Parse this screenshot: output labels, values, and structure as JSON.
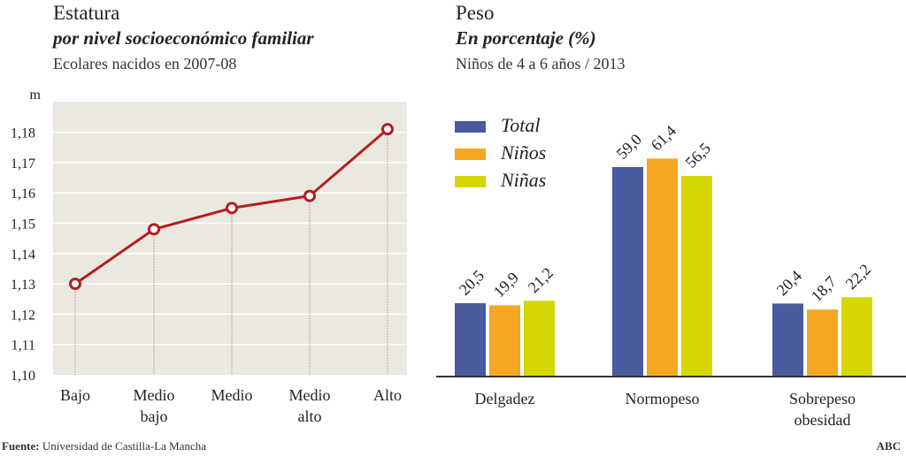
{
  "chart_data": [
    {
      "type": "line",
      "title": "Estatura",
      "subtitle": "por nivel socioeconómico familiar",
      "note": "Ecolares nacidos en 2007-08",
      "ylabel": "m",
      "categories": [
        [
          "Bajo"
        ],
        [
          "Medio",
          "bajo"
        ],
        [
          "Medio"
        ],
        [
          "Medio",
          "alto"
        ],
        [
          "Alto"
        ]
      ],
      "values": [
        1.13,
        1.148,
        1.155,
        1.159,
        1.181
      ],
      "ylim": [
        1.1,
        1.19
      ],
      "yticks": [
        "1,10",
        "1,11",
        "1,12",
        "1,13",
        "1,14",
        "1,15",
        "1,16",
        "1,17",
        "1,18"
      ],
      "grid": true,
      "colors": {
        "line": "#b21f1f",
        "plot_bg": "#ebe8df"
      }
    },
    {
      "type": "bar",
      "title": "Peso",
      "subtitle": "En porcentaje (%)",
      "note": "Niños de 4 a 6 años / 2013",
      "categories": [
        [
          "Delgadez"
        ],
        [
          "Normopeso"
        ],
        [
          "Sobrepeso",
          "obesidad"
        ]
      ],
      "series": [
        {
          "name": "Total",
          "values": [
            20.5,
            59.0,
            20.4
          ],
          "labels": [
            "20,5",
            "59,0",
            "20,4"
          ],
          "color": "#4a5a9e"
        },
        {
          "name": "Niños",
          "values": [
            19.9,
            61.4,
            18.7
          ],
          "labels": [
            "19,9",
            "61,4",
            "18,7"
          ],
          "color": "#f5a623"
        },
        {
          "name": "Niñas",
          "values": [
            21.2,
            56.5,
            22.2
          ],
          "labels": [
            "21,2",
            "56,5",
            "22,2"
          ],
          "color": "#d4d800"
        }
      ],
      "legend": "top-left",
      "grid": false
    }
  ],
  "footer": {
    "source_label": "Fuente:",
    "source": "Universidad de Castilla-La Mancha",
    "brand": "ABC"
  }
}
